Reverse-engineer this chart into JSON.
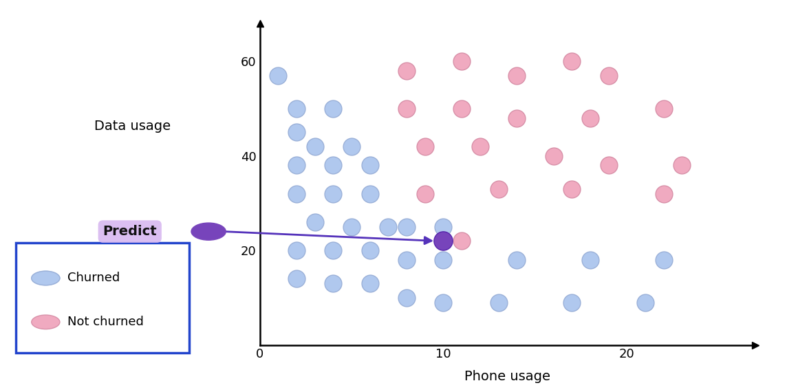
{
  "blue_points": [
    [
      1,
      57
    ],
    [
      2,
      50
    ],
    [
      4,
      50
    ],
    [
      2,
      45
    ],
    [
      3,
      42
    ],
    [
      5,
      42
    ],
    [
      2,
      38
    ],
    [
      4,
      38
    ],
    [
      6,
      38
    ],
    [
      2,
      32
    ],
    [
      4,
      32
    ],
    [
      6,
      32
    ],
    [
      3,
      26
    ],
    [
      5,
      25
    ],
    [
      7,
      25
    ],
    [
      2,
      20
    ],
    [
      4,
      20
    ],
    [
      6,
      20
    ],
    [
      2,
      14
    ],
    [
      4,
      13
    ],
    [
      6,
      13
    ],
    [
      8,
      25
    ],
    [
      10,
      25
    ],
    [
      8,
      18
    ],
    [
      10,
      18
    ],
    [
      8,
      10
    ],
    [
      10,
      9
    ],
    [
      13,
      9
    ],
    [
      17,
      9
    ],
    [
      21,
      9
    ],
    [
      14,
      18
    ],
    [
      18,
      18
    ],
    [
      22,
      18
    ]
  ],
  "pink_points": [
    [
      8,
      58
    ],
    [
      11,
      60
    ],
    [
      14,
      57
    ],
    [
      17,
      60
    ],
    [
      19,
      57
    ],
    [
      8,
      50
    ],
    [
      11,
      50
    ],
    [
      14,
      48
    ],
    [
      18,
      48
    ],
    [
      22,
      50
    ],
    [
      9,
      42
    ],
    [
      12,
      42
    ],
    [
      16,
      40
    ],
    [
      19,
      38
    ],
    [
      23,
      38
    ],
    [
      9,
      32
    ],
    [
      13,
      33
    ],
    [
      17,
      33
    ],
    [
      22,
      32
    ],
    [
      11,
      22
    ]
  ],
  "predict_dot_chart": [
    10,
    22
  ],
  "arrow_color": "#5533bb",
  "blue_color": "#b0c8ee",
  "blue_edge": "#9ab0d8",
  "pink_color": "#f0aac0",
  "pink_edge": "#d890a8",
  "predict_dot_color": "#7744bb",
  "predict_box_color": "#d8b8f0",
  "predict_text": "Predict",
  "xlabel": "Phone usage",
  "ylabel": "Data usage",
  "xlim": [
    0,
    27
  ],
  "ylim": [
    0,
    68
  ],
  "xticks": [
    0,
    10,
    20
  ],
  "yticks": [
    20,
    40,
    60
  ],
  "marker_size": 320,
  "legend_churned": "Churned",
  "legend_not_churned": "Not churned",
  "legend_box_color": "#2244cc",
  "background_color": "#ffffff",
  "fig_width": 11.44,
  "fig_height": 5.7,
  "dpi": 100
}
